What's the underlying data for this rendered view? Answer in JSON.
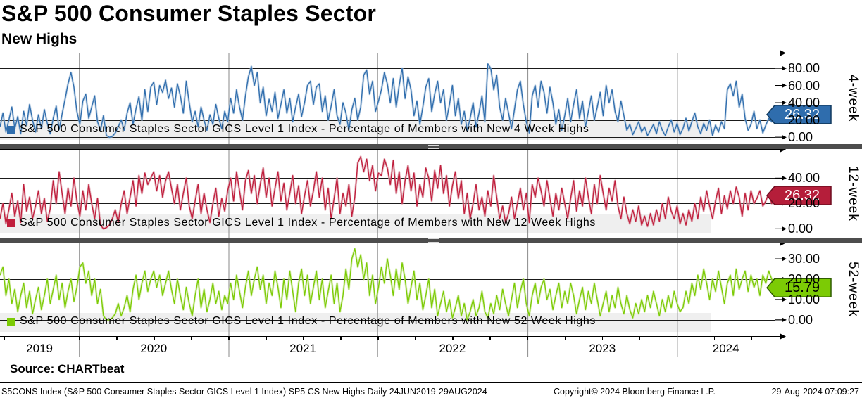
{
  "header": {
    "title": "S&P 500 Consumer Staples Sector",
    "subtitle": "New Highs"
  },
  "source_line": "Source: CHARTbeat",
  "footer": {
    "left": "S5CONS Index (S&P 500 Consumer Staples Sector GICS Level 1 Index) SP5 CS New Highs  Daily 24JUN2019-29AUG2024",
    "center": "Copyright© 2024 Bloomberg Finance L.P.",
    "right": "29-Aug-2024 07:09:27"
  },
  "chart_data": {
    "type": "line",
    "x_range": [
      "24JUN2019",
      "29AUG2024"
    ],
    "frequency": "Daily",
    "grid": true,
    "year_labels": [
      "2019",
      "2020",
      "2021",
      "2022",
      "2023",
      "2024"
    ],
    "year_boundaries_frac": [
      0.102,
      0.295,
      0.487,
      0.681,
      0.874
    ],
    "colors": {
      "h_grid": "#1a1a1a",
      "v_grid": "#8a8a8a",
      "legend_band": "#efefef",
      "separator": "#4d4d4d"
    },
    "panels": [
      {
        "axis_label": "4-week",
        "legend": "S&P 500 Consumer Staples Sector GICS Level 1 Index - Percentage of Members with New 4 Week Highs",
        "color": "#2f6dad",
        "color_light": "#a9c3dd",
        "tag_color": "#2f6dad",
        "tag_border": "#123a5e",
        "tag_text_color": "#ffffff",
        "tag_label": "26.32",
        "last": 26.32,
        "ymin": -8,
        "ymax": 98,
        "yticks": [
          0,
          20,
          40,
          60,
          80
        ],
        "ytick_labels": [
          "0.00",
          "20.00",
          "40.00",
          "60.00",
          "80.00"
        ],
        "values": [
          12,
          28,
          6,
          20,
          35,
          10,
          24,
          4,
          30,
          14,
          38,
          20,
          6,
          26,
          10,
          32,
          16,
          4,
          22,
          36,
          9,
          27,
          44,
          62,
          75,
          58,
          30,
          15,
          42,
          50,
          22,
          35,
          48,
          18,
          8,
          25,
          2,
          0,
          1,
          5,
          12,
          20,
          8,
          28,
          40,
          15,
          33,
          47,
          20,
          55,
          30,
          58,
          64,
          38,
          60,
          52,
          66,
          45,
          57,
          35,
          62,
          48,
          28,
          65,
          40,
          18,
          30,
          12,
          35,
          20,
          8,
          26,
          15,
          38,
          22,
          10,
          30,
          18,
          45,
          28,
          55,
          35,
          20,
          48,
          70,
          82,
          60,
          75,
          40,
          58,
          25,
          44,
          30,
          52,
          22,
          38,
          55,
          28,
          45,
          18,
          35,
          50,
          24,
          40,
          60,
          65,
          38,
          58,
          62,
          30,
          48,
          20,
          36,
          55,
          25,
          15,
          40,
          28,
          8,
          32,
          45,
          20,
          35,
          72,
          78,
          50,
          65,
          30,
          42,
          55,
          75,
          62,
          40,
          68,
          35,
          60,
          80,
          45,
          70,
          55,
          25,
          42,
          15,
          35,
          58,
          68,
          30,
          50,
          65,
          40,
          55,
          20,
          38,
          60,
          25,
          45,
          15,
          30,
          8,
          22,
          40,
          12,
          28,
          48,
          18,
          85,
          80,
          55,
          72,
          35,
          20,
          45,
          28,
          10,
          32,
          55,
          65,
          38,
          18,
          5,
          48,
          60,
          35,
          65,
          52,
          28,
          58,
          40,
          15,
          32,
          8,
          25,
          45,
          18,
          38,
          55,
          22,
          42,
          12,
          30,
          48,
          20,
          35,
          52,
          25,
          60,
          40,
          55,
          30,
          18,
          42,
          25,
          8,
          15,
          3,
          10,
          18,
          6,
          12,
          2,
          8,
          15,
          4,
          18,
          8,
          2,
          12,
          20,
          6,
          16,
          3,
          10,
          22,
          7,
          18,
          28,
          12,
          4,
          16,
          8,
          20,
          2,
          14,
          6,
          18,
          10,
          55,
          62,
          48,
          65,
          35,
          50,
          22,
          8,
          15,
          30,
          10,
          20,
          5,
          14,
          22,
          18,
          26.32
        ]
      },
      {
        "axis_label": "12-week",
        "legend": "S&P 500 Consumer Staples Sector GICS Level 1 Index - Percentage of Members with New 12 Week Highs",
        "color": "#c01e3c",
        "color_light": "#dc9aa6",
        "tag_color": "#b51e3a",
        "tag_border": "#6e0d20",
        "tag_text_color": "#ffffff",
        "tag_label": "26.32",
        "last": 26.32,
        "ymin": -7,
        "ymax": 63,
        "yticks": [
          0,
          20,
          40
        ],
        "ytick_labels": [
          "0.00",
          "20.00",
          "40.00"
        ],
        "values": [
          8,
          20,
          4,
          15,
          28,
          10,
          22,
          5,
          35,
          14,
          25,
          8,
          18,
          30,
          12,
          24,
          6,
          16,
          38,
          20,
          45,
          28,
          12,
          32,
          18,
          40,
          22,
          10,
          30,
          15,
          35,
          20,
          8,
          24,
          3,
          0,
          1,
          3,
          8,
          15,
          5,
          20,
          30,
          12,
          25,
          38,
          18,
          42,
          28,
          44,
          35,
          40,
          45,
          30,
          42,
          25,
          38,
          45,
          32,
          20,
          35,
          15,
          28,
          40,
          18,
          8,
          22,
          35,
          12,
          28,
          15,
          5,
          20,
          32,
          10,
          24,
          14,
          30,
          40,
          22,
          45,
          30,
          15,
          38,
          46,
          28,
          42,
          20,
          35,
          48,
          25,
          40,
          18,
          32,
          45,
          22,
          36,
          15,
          28,
          42,
          20,
          34,
          12,
          26,
          38,
          18,
          30,
          45,
          25,
          40,
          15,
          32,
          8,
          24,
          40,
          12,
          28,
          18,
          35,
          10,
          25,
          52,
          57,
          45,
          55,
          38,
          50,
          30,
          44,
          42,
          55,
          48,
          35,
          54,
          28,
          45,
          20,
          38,
          50,
          30,
          44,
          18,
          35,
          25,
          48,
          40,
          22,
          46,
          32,
          50,
          28,
          42,
          18,
          34,
          45,
          24,
          38,
          12,
          28,
          8,
          20,
          35,
          15,
          25,
          10,
          30,
          18,
          42,
          25,
          8,
          18,
          5,
          12,
          25,
          8,
          20,
          32,
          15,
          28,
          5,
          35,
          25,
          40,
          30,
          18,
          38,
          24,
          10,
          28,
          15,
          32,
          20,
          8,
          24,
          38,
          14,
          30,
          18,
          40,
          25,
          12,
          35,
          20,
          42,
          28,
          15,
          32,
          22,
          38,
          18,
          8,
          25,
          12,
          4,
          15,
          6,
          18,
          3,
          10,
          2,
          12,
          3,
          15,
          6,
          20,
          8,
          25,
          14,
          8,
          18,
          4,
          12,
          3,
          15,
          6,
          20,
          8,
          25,
          14,
          30,
          18,
          8,
          22,
          32,
          12,
          26,
          16,
          30,
          20,
          33,
          25,
          10,
          28,
          15,
          30,
          20,
          24,
          30,
          18,
          22,
          28,
          20,
          26.32
        ]
      },
      {
        "axis_label": "52-week",
        "legend": "S&P 500 Consumer Staples Sector GICS Level 1 Index - Percentage of Members with New 52 Week Highs",
        "color": "#7ccb05",
        "color_light": "#c9e795",
        "tag_color": "#7ccb05",
        "tag_border": "#2f5c00",
        "tag_text_color": "#000000",
        "tag_label": "15.79",
        "last": 15.79,
        "ymin": -8,
        "ymax": 38,
        "yticks": [
          0,
          10,
          20,
          30
        ],
        "ytick_labels": [
          "0.00",
          "10.00",
          "20.00",
          "30.00"
        ],
        "values": [
          22,
          26,
          12,
          20,
          8,
          15,
          4,
          12,
          18,
          6,
          14,
          3,
          10,
          16,
          5,
          12,
          20,
          8,
          15,
          22,
          10,
          18,
          6,
          14,
          20,
          9,
          16,
          26,
          28,
          18,
          24,
          12,
          20,
          8,
          15,
          2,
          0,
          0,
          1,
          3,
          8,
          2,
          6,
          12,
          4,
          15,
          22,
          10,
          18,
          24,
          14,
          20,
          24,
          16,
          22,
          12,
          18,
          24,
          15,
          8,
          20,
          12,
          5,
          16,
          8,
          2,
          12,
          20,
          6,
          15,
          4,
          10,
          18,
          8,
          14,
          5,
          12,
          8,
          18,
          10,
          22,
          14,
          6,
          16,
          24,
          12,
          20,
          26,
          15,
          22,
          8,
          18,
          12,
          24,
          16,
          6,
          20,
          10,
          24,
          14,
          4,
          18,
          25,
          12,
          22,
          8,
          16,
          24,
          10,
          20,
          6,
          14,
          22,
          8,
          18,
          4,
          12,
          25,
          15,
          30,
          35,
          26,
          32,
          20,
          28,
          12,
          22,
          8,
          16,
          26,
          18,
          30,
          22,
          12,
          25,
          15,
          28,
          20,
          8,
          16,
          24,
          10,
          18,
          5,
          12,
          20,
          6,
          15,
          2,
          8,
          14,
          4,
          10,
          1,
          6,
          12,
          2,
          8,
          0,
          4,
          10,
          2,
          6,
          14,
          4,
          1,
          8,
          3,
          12,
          5,
          15,
          8,
          2,
          10,
          18,
          6,
          14,
          20,
          8,
          2,
          12,
          18,
          8,
          16,
          20,
          10,
          15,
          5,
          12,
          18,
          6,
          14,
          8,
          18,
          12,
          3,
          10,
          16,
          5,
          14,
          8,
          18,
          10,
          2,
          8,
          14,
          4,
          12,
          6,
          16,
          8,
          3,
          12,
          5,
          1,
          8,
          3,
          10,
          4,
          12,
          6,
          14,
          8,
          2,
          10,
          4,
          12,
          6,
          14,
          8,
          4,
          6,
          14,
          8,
          18,
          12,
          22,
          15,
          25,
          18,
          10,
          20,
          14,
          24,
          16,
          8,
          18,
          22,
          12,
          25,
          15,
          20,
          24,
          14,
          22,
          16,
          20,
          12,
          22,
          18,
          24,
          20,
          15.79
        ]
      }
    ]
  }
}
